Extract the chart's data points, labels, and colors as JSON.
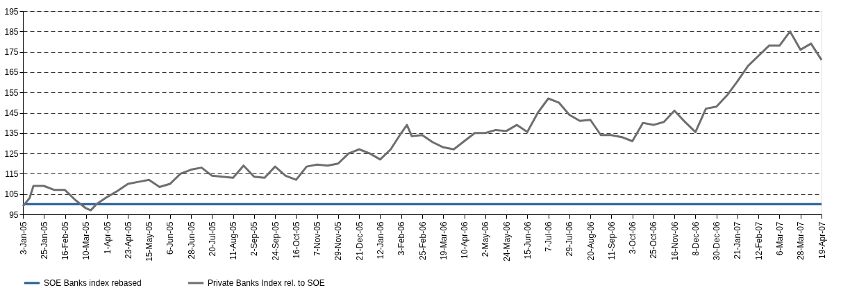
{
  "chart_data": {
    "type": "line",
    "ylim": [
      95,
      195
    ],
    "yticks": [
      95,
      105,
      115,
      125,
      135,
      145,
      155,
      165,
      175,
      185,
      195
    ],
    "xlim": [
      "2005-01-03",
      "2007-04-19"
    ],
    "xticks": [
      {
        "value": "2005-01-03",
        "label": "3-Jan-05"
      },
      {
        "value": "2005-01-25",
        "label": "25-Jan-05"
      },
      {
        "value": "2005-02-16",
        "label": "16-Feb-05"
      },
      {
        "value": "2005-03-10",
        "label": "10-Mar-05"
      },
      {
        "value": "2005-04-01",
        "label": "1-Apr-05"
      },
      {
        "value": "2005-04-23",
        "label": "23-Apr-05"
      },
      {
        "value": "2005-05-15",
        "label": "15-May-05"
      },
      {
        "value": "2005-06-06",
        "label": "6-Jun-05"
      },
      {
        "value": "2005-06-28",
        "label": "28-Jun-05"
      },
      {
        "value": "2005-07-20",
        "label": "20-Jul-05"
      },
      {
        "value": "2005-08-11",
        "label": "11-Aug-05"
      },
      {
        "value": "2005-09-02",
        "label": "2-Sep-05"
      },
      {
        "value": "2005-09-24",
        "label": "24-Sep-05"
      },
      {
        "value": "2005-10-16",
        "label": "16-Oct-05"
      },
      {
        "value": "2005-11-07",
        "label": "7-Nov-05"
      },
      {
        "value": "2005-11-29",
        "label": "29-Nov-05"
      },
      {
        "value": "2005-12-21",
        "label": "21-Dec-05"
      },
      {
        "value": "2006-01-12",
        "label": "12-Jan-06"
      },
      {
        "value": "2006-02-03",
        "label": "3-Feb-06"
      },
      {
        "value": "2006-02-25",
        "label": "25-Feb-06"
      },
      {
        "value": "2006-03-19",
        "label": "19-Mar-06"
      },
      {
        "value": "2006-04-10",
        "label": "10-Apr-06"
      },
      {
        "value": "2006-05-02",
        "label": "2-May-06"
      },
      {
        "value": "2006-05-24",
        "label": "24-May-06"
      },
      {
        "value": "2006-06-15",
        "label": "15-Jun-06"
      },
      {
        "value": "2006-07-07",
        "label": "7-Jul-06"
      },
      {
        "value": "2006-07-29",
        "label": "29-Jul-06"
      },
      {
        "value": "2006-08-20",
        "label": "20-Aug-06"
      },
      {
        "value": "2006-09-11",
        "label": "11-Sep-06"
      },
      {
        "value": "2006-10-03",
        "label": "3-Oct-06"
      },
      {
        "value": "2006-10-25",
        "label": "25-Oct-06"
      },
      {
        "value": "2006-11-16",
        "label": "16-Nov-06"
      },
      {
        "value": "2006-12-08",
        "label": "8-Dec-06"
      },
      {
        "value": "2006-12-30",
        "label": "30-Dec-06"
      },
      {
        "value": "2007-01-21",
        "label": "21-Jan-07"
      },
      {
        "value": "2007-02-12",
        "label": "12-Feb-07"
      },
      {
        "value": "2007-03-06",
        "label": "6-Mar-07"
      },
      {
        "value": "2007-03-28",
        "label": "28-Mar-07"
      },
      {
        "value": "2007-04-19",
        "label": "19-Apr-07"
      }
    ],
    "grid": "y",
    "legend": "bottom",
    "marker": "none",
    "line_style": "solid",
    "series": [
      {
        "name": "SOE Banks index rebased",
        "color": "#1a5ca8",
        "x": [
          "2005-01-03",
          "2007-04-19"
        ],
        "values": [
          100,
          100
        ]
      },
      {
        "name": "Private Banks Index rel. to SOE",
        "color": "#6e6e6e",
        "x": [
          "2005-01-03",
          "2005-01-10",
          "2005-01-14",
          "2005-01-25",
          "2005-02-05",
          "2005-02-16",
          "2005-02-27",
          "2005-03-10",
          "2005-03-15",
          "2005-03-21",
          "2005-04-01",
          "2005-04-12",
          "2005-04-23",
          "2005-05-04",
          "2005-05-15",
          "2005-05-26",
          "2005-06-06",
          "2005-06-17",
          "2005-06-28",
          "2005-07-09",
          "2005-07-20",
          "2005-07-31",
          "2005-08-11",
          "2005-08-22",
          "2005-09-02",
          "2005-09-13",
          "2005-09-24",
          "2005-10-05",
          "2005-10-16",
          "2005-10-27",
          "2005-11-07",
          "2005-11-18",
          "2005-11-29",
          "2005-12-10",
          "2005-12-21",
          "2006-01-01",
          "2006-01-12",
          "2006-01-23",
          "2006-02-03",
          "2006-02-09",
          "2006-02-14",
          "2006-02-25",
          "2006-03-08",
          "2006-03-19",
          "2006-03-30",
          "2006-04-10",
          "2006-04-21",
          "2006-05-02",
          "2006-05-13",
          "2006-05-24",
          "2006-06-04",
          "2006-06-15",
          "2006-06-26",
          "2006-07-07",
          "2006-07-18",
          "2006-07-29",
          "2006-08-09",
          "2006-08-20",
          "2006-08-31",
          "2006-09-11",
          "2006-09-22",
          "2006-10-03",
          "2006-10-14",
          "2006-10-25",
          "2006-11-05",
          "2006-11-16",
          "2006-11-27",
          "2006-12-08",
          "2006-12-19",
          "2006-12-30",
          "2007-01-10",
          "2007-01-21",
          "2007-02-01",
          "2007-02-12",
          "2007-02-23",
          "2007-03-06",
          "2007-03-17",
          "2007-03-28",
          "2007-04-08",
          "2007-04-19"
        ],
        "values": [
          99,
          103,
          109,
          109,
          107,
          107,
          102,
          98,
          97,
          100,
          103.5,
          106.5,
          110,
          111,
          112,
          108.5,
          110,
          115,
          117,
          118,
          114,
          113.5,
          113,
          119,
          113.5,
          113,
          118.5,
          114,
          112,
          118.5,
          119.5,
          119,
          120,
          125,
          127,
          125,
          122,
          127,
          135,
          139,
          133.5,
          134,
          130.5,
          128,
          127,
          131,
          135,
          135,
          136.5,
          136,
          139,
          135.5,
          145,
          152,
          150,
          144,
          141,
          141.5,
          134,
          134,
          133,
          131,
          140,
          139,
          140.5,
          146,
          140.5,
          135.5,
          147,
          148,
          153.5,
          160.5,
          168,
          173,
          178,
          178,
          185,
          176,
          179,
          171
        ]
      }
    ]
  }
}
